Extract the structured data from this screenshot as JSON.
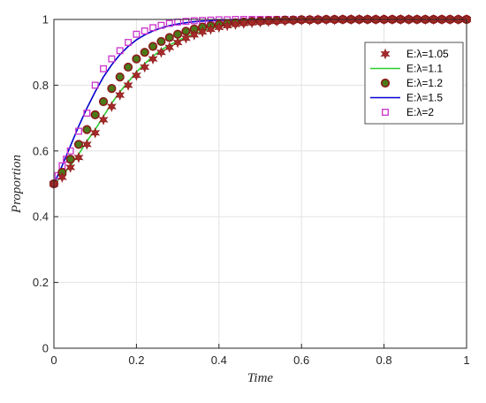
{
  "chart_data": {
    "type": "line",
    "title": "",
    "xlabel": "Time",
    "ylabel": "Proportion",
    "xlim": [
      0,
      1
    ],
    "ylim": [
      0,
      1
    ],
    "xticks": [
      0,
      0.2,
      0.4,
      0.6,
      0.8,
      1
    ],
    "yticks": [
      0,
      0.2,
      0.4,
      0.6,
      0.8,
      1
    ],
    "xtick_labels": [
      "0",
      "0.2",
      "0.4",
      "0.6",
      "0.8",
      "1"
    ],
    "ytick_labels": [
      "0",
      "0.2",
      "0.4",
      "0.6",
      "0.8",
      "1"
    ],
    "grid": true,
    "legend_position": "top-right",
    "series": [
      {
        "name": "E:λ=1.05",
        "style": "markers",
        "marker": "hexagram",
        "color": "#a52a2a",
        "x": [
          0,
          0.02,
          0.04,
          0.06,
          0.08,
          0.1,
          0.12,
          0.14,
          0.16,
          0.18,
          0.2,
          0.22,
          0.24,
          0.26,
          0.28,
          0.3,
          0.32,
          0.34,
          0.36,
          0.38,
          0.4,
          0.42,
          0.44,
          0.46,
          0.48,
          0.5,
          0.52,
          0.54,
          0.56,
          0.58,
          0.6,
          0.62,
          0.64,
          0.66,
          0.68,
          0.7,
          0.72,
          0.74,
          0.76,
          0.78,
          0.8,
          0.82,
          0.84,
          0.86,
          0.88,
          0.9,
          0.92,
          0.94,
          0.96,
          0.98,
          1
        ],
        "y": [
          0.5,
          0.52,
          0.55,
          0.58,
          0.62,
          0.655,
          0.695,
          0.735,
          0.77,
          0.8,
          0.83,
          0.855,
          0.88,
          0.9,
          0.915,
          0.93,
          0.943,
          0.953,
          0.962,
          0.97,
          0.976,
          0.981,
          0.985,
          0.988,
          0.99,
          0.992,
          0.994,
          0.995,
          0.996,
          0.997,
          0.998,
          0.998,
          0.999,
          0.999,
          0.999,
          1,
          1,
          1,
          1,
          1,
          1,
          1,
          1,
          1,
          1,
          1,
          1,
          1,
          1,
          1,
          1
        ]
      },
      {
        "name": "E:λ=1.1",
        "style": "line",
        "color": "#2ecc2e",
        "x": [
          0,
          0.02,
          0.04,
          0.06,
          0.08,
          0.1,
          0.12,
          0.14,
          0.16,
          0.18,
          0.2,
          0.22,
          0.24,
          0.26,
          0.28,
          0.3,
          0.32,
          0.34,
          0.36,
          0.38,
          0.4,
          0.42,
          0.44,
          0.46,
          0.48,
          0.5,
          0.55,
          0.6,
          0.7,
          0.8,
          0.9,
          1
        ],
        "y": [
          0.5,
          0.525,
          0.555,
          0.59,
          0.63,
          0.665,
          0.705,
          0.745,
          0.78,
          0.81,
          0.84,
          0.865,
          0.888,
          0.907,
          0.922,
          0.935,
          0.947,
          0.957,
          0.965,
          0.972,
          0.978,
          0.983,
          0.986,
          0.989,
          0.991,
          0.993,
          0.996,
          0.998,
          0.999,
          1,
          1,
          1
        ]
      },
      {
        "name": "E:λ=1.2",
        "style": "markers",
        "marker": "circle",
        "color": "#8b1a1a",
        "fill": "#4a7a1a",
        "x": [
          0,
          0.02,
          0.04,
          0.06,
          0.08,
          0.1,
          0.12,
          0.14,
          0.16,
          0.18,
          0.2,
          0.22,
          0.24,
          0.26,
          0.28,
          0.3,
          0.32,
          0.34,
          0.36,
          0.38,
          0.4,
          0.42,
          0.44,
          0.46,
          0.48,
          0.5,
          0.52,
          0.54,
          0.56,
          0.58,
          0.6,
          0.62,
          0.64,
          0.66,
          0.68,
          0.7,
          0.72,
          0.74,
          0.76,
          0.78,
          0.8,
          0.82,
          0.84,
          0.86,
          0.88,
          0.9,
          0.92,
          0.94,
          0.96,
          0.98,
          1
        ],
        "y": [
          0.5,
          0.535,
          0.575,
          0.62,
          0.665,
          0.71,
          0.75,
          0.79,
          0.825,
          0.855,
          0.88,
          0.9,
          0.918,
          0.933,
          0.945,
          0.955,
          0.964,
          0.971,
          0.977,
          0.981,
          0.985,
          0.988,
          0.99,
          0.992,
          0.994,
          0.995,
          0.996,
          0.997,
          0.998,
          0.998,
          0.999,
          0.999,
          0.999,
          1,
          1,
          1,
          1,
          1,
          1,
          1,
          1,
          1,
          1,
          1,
          1,
          1,
          1,
          1,
          1,
          1,
          1
        ]
      },
      {
        "name": "E:λ=1.5",
        "style": "line",
        "color": "#0000cc",
        "x": [
          0,
          0.02,
          0.04,
          0.06,
          0.08,
          0.1,
          0.12,
          0.14,
          0.16,
          0.18,
          0.2,
          0.22,
          0.24,
          0.26,
          0.28,
          0.3,
          0.32,
          0.34,
          0.36,
          0.38,
          0.4,
          0.45,
          0.5,
          0.6,
          0.7,
          0.8,
          0.9,
          1
        ],
        "y": [
          0.5,
          0.555,
          0.615,
          0.675,
          0.73,
          0.78,
          0.825,
          0.862,
          0.893,
          0.918,
          0.938,
          0.953,
          0.965,
          0.974,
          0.981,
          0.986,
          0.99,
          0.993,
          0.995,
          0.996,
          0.997,
          0.999,
          1,
          1,
          1,
          1,
          1,
          1
        ]
      },
      {
        "name": "E:λ=2",
        "style": "markers",
        "marker": "square",
        "color": "#cc33cc",
        "x": [
          0,
          0.01,
          0.02,
          0.03,
          0.04,
          0.06,
          0.08,
          0.1,
          0.12,
          0.14,
          0.16,
          0.18,
          0.2,
          0.22,
          0.24,
          0.26,
          0.28,
          0.3,
          0.32,
          0.34,
          0.36,
          0.38,
          0.4,
          0.42,
          0.44,
          0.46,
          0.48,
          0.5,
          0.52,
          0.54,
          0.56,
          0.58,
          0.6,
          0.62,
          0.64,
          0.66,
          0.68,
          0.7,
          0.72,
          0.74,
          0.76,
          0.78,
          0.8,
          0.82,
          0.84,
          0.86,
          0.88,
          0.9,
          0.92,
          0.94,
          0.96,
          0.98,
          1
        ],
        "y": [
          0.5,
          0.525,
          0.555,
          0.575,
          0.6,
          0.66,
          0.715,
          0.8,
          0.85,
          0.88,
          0.905,
          0.93,
          0.955,
          0.965,
          0.975,
          0.982,
          0.988,
          0.992,
          0.994,
          0.996,
          0.997,
          0.998,
          0.999,
          0.999,
          1,
          1,
          1,
          1,
          1,
          1,
          1,
          1,
          1,
          1,
          1,
          1,
          1,
          1,
          1,
          1,
          1,
          1,
          1,
          1,
          1,
          1,
          1,
          1,
          1,
          1,
          1,
          1,
          1
        ]
      }
    ]
  }
}
